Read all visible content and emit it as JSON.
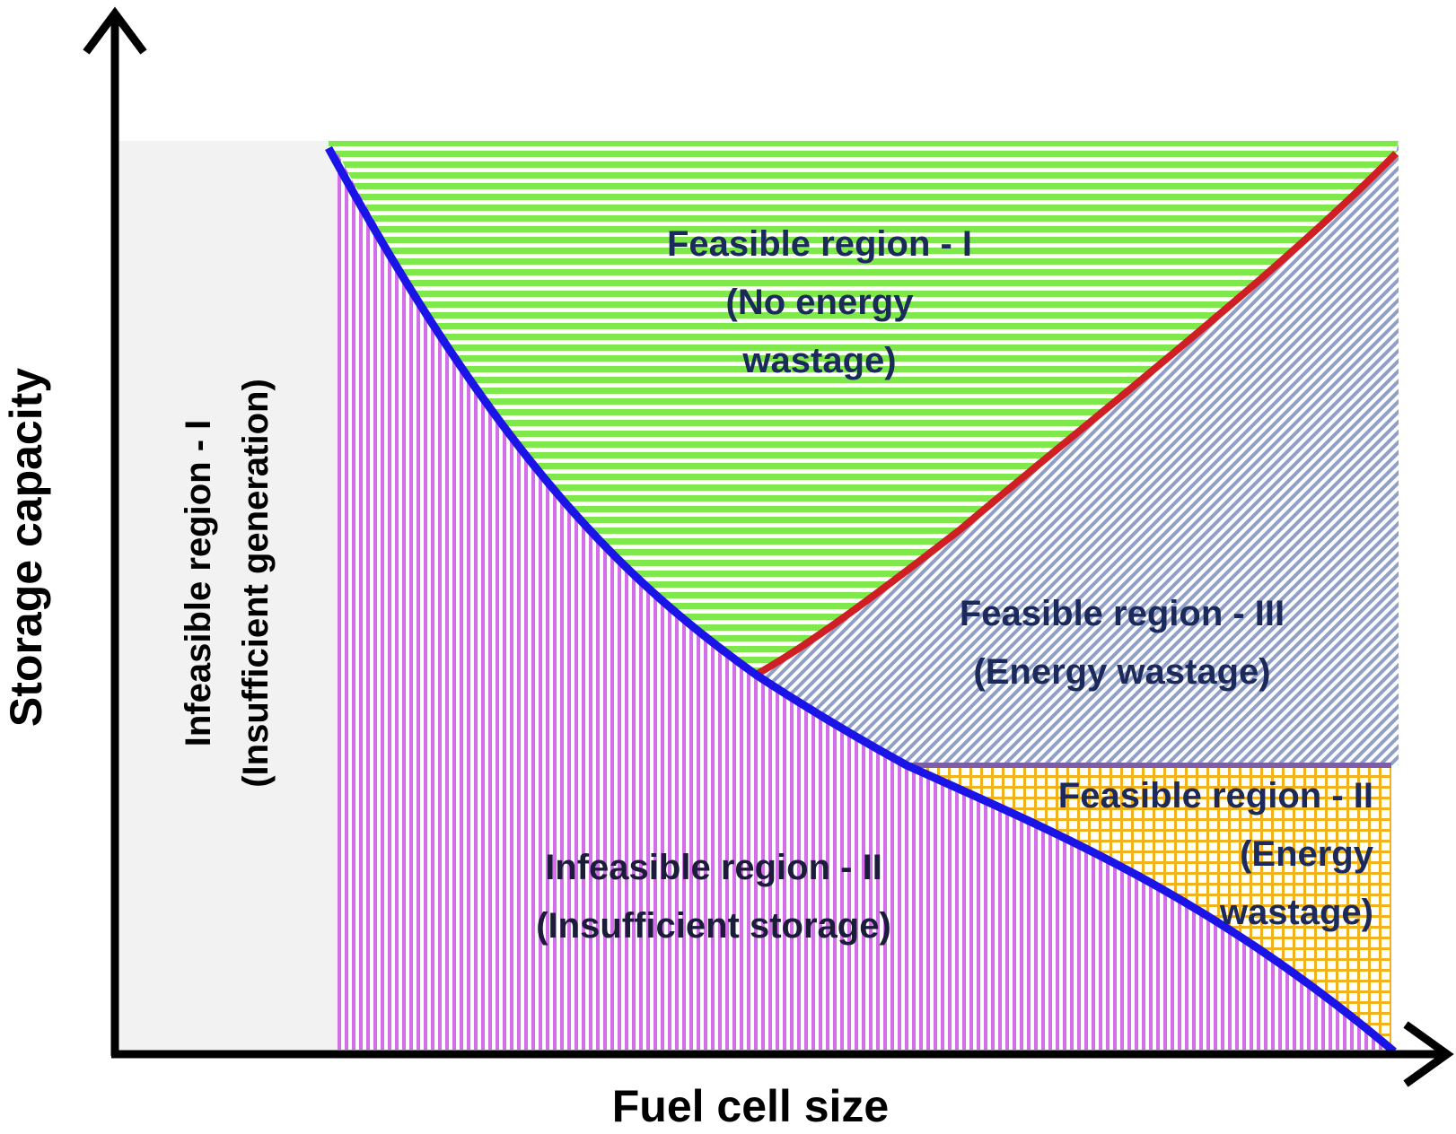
{
  "axes": {
    "x_label": "Fuel cell size",
    "y_label": "Storage capacity"
  },
  "regions": {
    "infeasible_1": {
      "lines": [
        "Infeasible region - I",
        "(Insufficient generation)"
      ],
      "fill": "#f2f2f2",
      "text_color": "#000000"
    },
    "infeasible_2": {
      "lines": [
        "Infeasible region - II",
        "(Insufficient storage)"
      ],
      "fill": "#d36fe8",
      "text_color": "#1b1b3a"
    },
    "feasible_1": {
      "lines": [
        "Feasible region - I",
        "(No energy",
        "wastage)"
      ],
      "fill": "#7fe84b",
      "text_color": "#1b2a5a"
    },
    "feasible_3": {
      "lines": [
        "Feasible region - III",
        "(Energy wastage)"
      ],
      "fill": "#8f9fc8",
      "text_color": "#1b2a5a"
    },
    "feasible_2": {
      "lines": [
        "Feasible region - II",
        "(Energy",
        "wastage)"
      ],
      "fill": "#f2b21c",
      "text_color": "#1b2a5a"
    }
  },
  "boundaries": {
    "blue_curve_color": "#1a14e6",
    "red_curve_color": "#d01f24",
    "purple_line_color": "#7c5ea8",
    "axis_color": "#000000"
  }
}
